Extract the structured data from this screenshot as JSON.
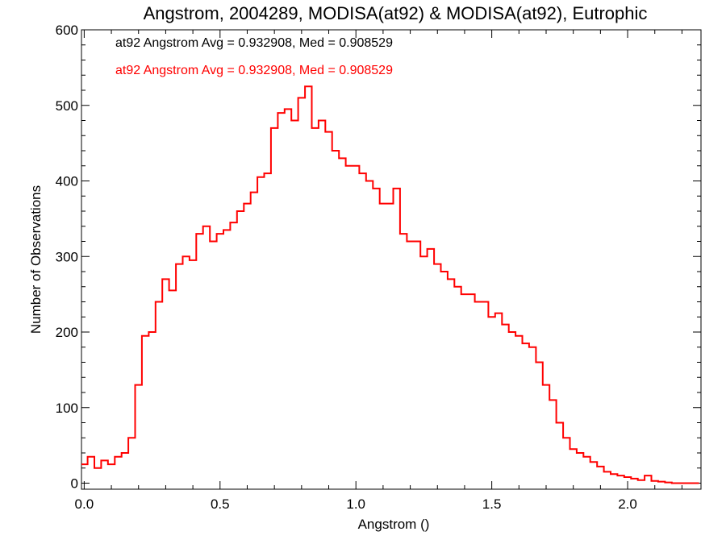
{
  "chart_data": {
    "type": "line",
    "title": "Angstrom, 2004289, MODISA(at92) & MODISA(at92), Eutrophic",
    "xlabel": "Angstrom ()",
    "ylabel": "Number of Observations",
    "xlim": [
      -0.01,
      2.27
    ],
    "ylim": [
      -8,
      600
    ],
    "xticks": [
      0.0,
      0.5,
      1.0,
      1.5,
      2.0
    ],
    "xtick_labels": [
      "0.0",
      "0.5",
      "1.0",
      "1.5",
      "2.0"
    ],
    "yticks": [
      0,
      100,
      200,
      300,
      400,
      500,
      600
    ],
    "ytick_labels": [
      "0",
      "100",
      "200",
      "300",
      "400",
      "500",
      "600"
    ],
    "grid": false,
    "legend": [
      {
        "text": "at92 Angstrom Avg = 0.932908, Med = 0.908529",
        "color": "#000000"
      },
      {
        "text": "at92 Angstrom Avg = 0.932908, Med = 0.908529",
        "color": "#ff0000"
      }
    ],
    "series": [
      {
        "color": "#ff0000",
        "step": "mid",
        "x": [
          0.0,
          0.025,
          0.05,
          0.075,
          0.1,
          0.125,
          0.15,
          0.175,
          0.2,
          0.225,
          0.25,
          0.275,
          0.3,
          0.325,
          0.35,
          0.375,
          0.4,
          0.425,
          0.45,
          0.475,
          0.5,
          0.525,
          0.55,
          0.575,
          0.6,
          0.625,
          0.65,
          0.675,
          0.7,
          0.725,
          0.75,
          0.775,
          0.8,
          0.825,
          0.85,
          0.875,
          0.9,
          0.925,
          0.95,
          0.975,
          1.0,
          1.025,
          1.05,
          1.075,
          1.1,
          1.125,
          1.15,
          1.175,
          1.2,
          1.225,
          1.25,
          1.275,
          1.3,
          1.325,
          1.35,
          1.375,
          1.4,
          1.425,
          1.45,
          1.475,
          1.5,
          1.525,
          1.55,
          1.575,
          1.6,
          1.625,
          1.65,
          1.675,
          1.7,
          1.725,
          1.75,
          1.775,
          1.8,
          1.825,
          1.85,
          1.875,
          1.9,
          1.925,
          1.95,
          1.975,
          2.0,
          2.025,
          2.05,
          2.075,
          2.1,
          2.125,
          2.15,
          2.175,
          2.2,
          2.225,
          2.25
        ],
        "y": [
          25,
          35,
          20,
          30,
          25,
          35,
          40,
          60,
          130,
          195,
          200,
          240,
          270,
          255,
          290,
          300,
          295,
          330,
          340,
          320,
          330,
          335,
          345,
          360,
          370,
          385,
          405,
          410,
          470,
          490,
          495,
          480,
          510,
          525,
          470,
          480,
          465,
          440,
          430,
          420,
          420,
          410,
          400,
          390,
          370,
          370,
          390,
          330,
          320,
          320,
          300,
          310,
          290,
          280,
          270,
          260,
          250,
          250,
          240,
          240,
          220,
          225,
          210,
          200,
          195,
          185,
          180,
          160,
          130,
          110,
          80,
          60,
          45,
          40,
          35,
          28,
          22,
          15,
          12,
          10,
          8,
          6,
          4,
          10,
          3,
          2,
          1,
          0,
          0,
          0,
          0
        ]
      }
    ]
  }
}
